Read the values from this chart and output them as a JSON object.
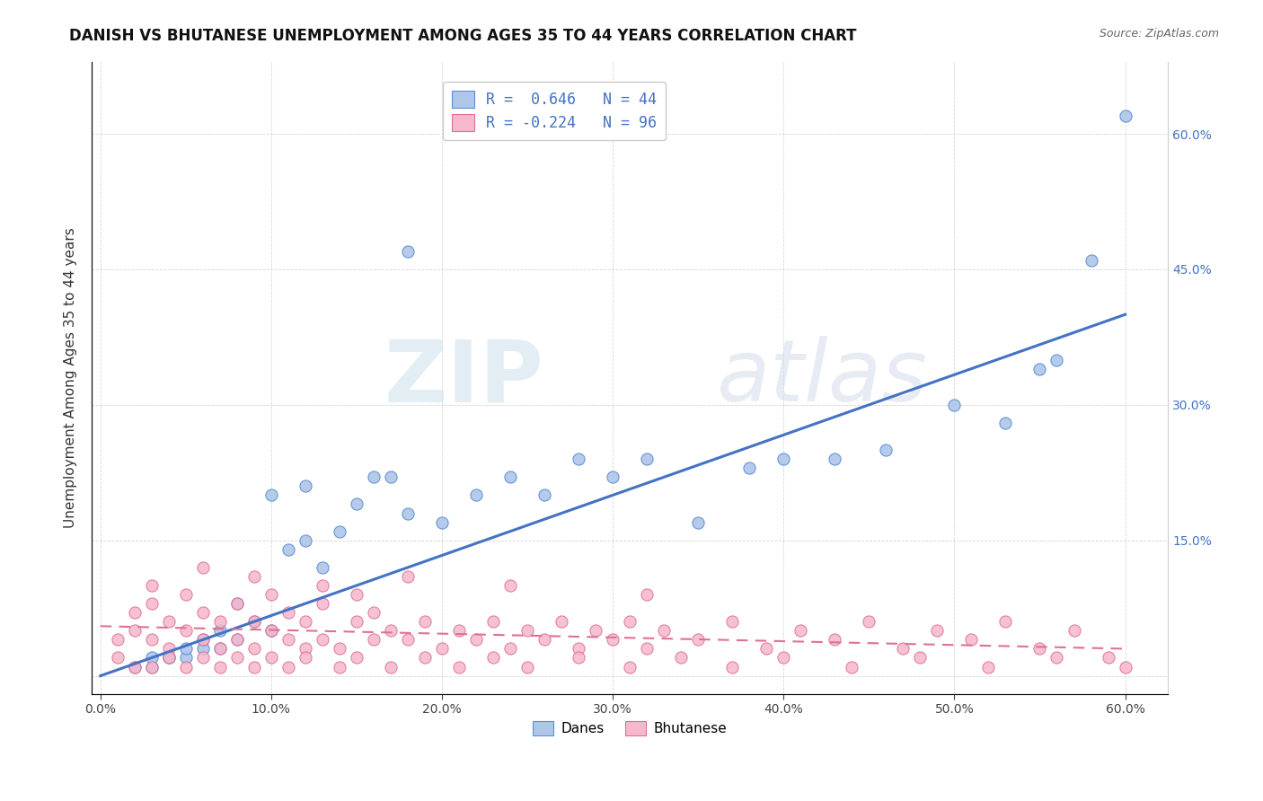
{
  "title": "DANISH VS BHUTANESE UNEMPLOYMENT AMONG AGES 35 TO 44 YEARS CORRELATION CHART",
  "source": "Source: ZipAtlas.com",
  "ylabel": "Unemployment Among Ages 35 to 44 years",
  "legend_bottom": [
    "Danes",
    "Bhutanese"
  ],
  "blue_R": 0.646,
  "blue_N": 44,
  "pink_R": -0.224,
  "pink_N": 96,
  "blue_color": "#aec6e8",
  "pink_color": "#f5b8cc",
  "blue_edge_color": "#5b8ed6",
  "pink_edge_color": "#e07090",
  "blue_line_color": "#4472c4",
  "pink_line_color": "#e07090",
  "xticks": [
    0.0,
    0.1,
    0.2,
    0.3,
    0.4,
    0.5,
    0.6
  ],
  "xticklabels": [
    "0.0%",
    "10.0%",
    "20.0%",
    "30.0%",
    "40.0%",
    "50.0%",
    "60.0%"
  ],
  "yticks": [
    0.0,
    0.15,
    0.3,
    0.45,
    0.6
  ],
  "right_yticklabels": [
    "",
    "15.0%",
    "30.0%",
    "45.0%",
    "60.0%"
  ],
  "xlim": [
    -0.005,
    0.625
  ],
  "ylim": [
    -0.02,
    0.68
  ],
  "blue_scatter_x": [
    0.02,
    0.03,
    0.04,
    0.05,
    0.06,
    0.06,
    0.07,
    0.07,
    0.08,
    0.09,
    0.1,
    0.11,
    0.12,
    0.13,
    0.14,
    0.15,
    0.17,
    0.18,
    0.2,
    0.22,
    0.24,
    0.26,
    0.28,
    0.3,
    0.32,
    0.35,
    0.38,
    0.4,
    0.43,
    0.46,
    0.5,
    0.53,
    0.56,
    0.58,
    0.18,
    0.55,
    0.6,
    0.03,
    0.04,
    0.05,
    0.08,
    0.1,
    0.12,
    0.16
  ],
  "blue_scatter_y": [
    0.01,
    0.01,
    0.02,
    0.02,
    0.03,
    0.04,
    0.03,
    0.05,
    0.04,
    0.06,
    0.05,
    0.14,
    0.15,
    0.12,
    0.16,
    0.19,
    0.22,
    0.18,
    0.17,
    0.2,
    0.22,
    0.2,
    0.24,
    0.22,
    0.24,
    0.17,
    0.23,
    0.24,
    0.24,
    0.25,
    0.3,
    0.28,
    0.35,
    0.46,
    0.47,
    0.34,
    0.62,
    0.02,
    0.02,
    0.03,
    0.08,
    0.2,
    0.21,
    0.22
  ],
  "pink_scatter_x": [
    0.01,
    0.02,
    0.02,
    0.03,
    0.03,
    0.04,
    0.04,
    0.05,
    0.05,
    0.06,
    0.06,
    0.07,
    0.07,
    0.08,
    0.08,
    0.09,
    0.09,
    0.1,
    0.1,
    0.11,
    0.11,
    0.12,
    0.12,
    0.13,
    0.13,
    0.14,
    0.15,
    0.15,
    0.16,
    0.16,
    0.17,
    0.18,
    0.19,
    0.2,
    0.21,
    0.22,
    0.23,
    0.24,
    0.25,
    0.26,
    0.27,
    0.28,
    0.29,
    0.3,
    0.31,
    0.32,
    0.33,
    0.35,
    0.37,
    0.39,
    0.41,
    0.43,
    0.45,
    0.47,
    0.49,
    0.51,
    0.53,
    0.55,
    0.57,
    0.59,
    0.01,
    0.02,
    0.03,
    0.04,
    0.05,
    0.06,
    0.07,
    0.08,
    0.09,
    0.1,
    0.11,
    0.12,
    0.14,
    0.15,
    0.17,
    0.19,
    0.21,
    0.23,
    0.25,
    0.28,
    0.31,
    0.34,
    0.37,
    0.4,
    0.44,
    0.48,
    0.52,
    0.56,
    0.6,
    0.03,
    0.06,
    0.09,
    0.13,
    0.18,
    0.24,
    0.32
  ],
  "pink_scatter_y": [
    0.04,
    0.05,
    0.07,
    0.04,
    0.08,
    0.03,
    0.06,
    0.05,
    0.09,
    0.04,
    0.07,
    0.03,
    0.06,
    0.04,
    0.08,
    0.03,
    0.06,
    0.05,
    0.09,
    0.04,
    0.07,
    0.03,
    0.06,
    0.04,
    0.08,
    0.03,
    0.06,
    0.09,
    0.04,
    0.07,
    0.05,
    0.04,
    0.06,
    0.03,
    0.05,
    0.04,
    0.06,
    0.03,
    0.05,
    0.04,
    0.06,
    0.03,
    0.05,
    0.04,
    0.06,
    0.03,
    0.05,
    0.04,
    0.06,
    0.03,
    0.05,
    0.04,
    0.06,
    0.03,
    0.05,
    0.04,
    0.06,
    0.03,
    0.05,
    0.02,
    0.02,
    0.01,
    0.01,
    0.02,
    0.01,
    0.02,
    0.01,
    0.02,
    0.01,
    0.02,
    0.01,
    0.02,
    0.01,
    0.02,
    0.01,
    0.02,
    0.01,
    0.02,
    0.01,
    0.02,
    0.01,
    0.02,
    0.01,
    0.02,
    0.01,
    0.02,
    0.01,
    0.02,
    0.01,
    0.1,
    0.12,
    0.11,
    0.1,
    0.11,
    0.1,
    0.09
  ],
  "blue_trendline_x": [
    0.0,
    0.6
  ],
  "blue_trendline_y": [
    0.0,
    0.4
  ],
  "pink_trendline_x": [
    0.0,
    0.6
  ],
  "pink_trendline_y": [
    0.055,
    0.03
  ]
}
